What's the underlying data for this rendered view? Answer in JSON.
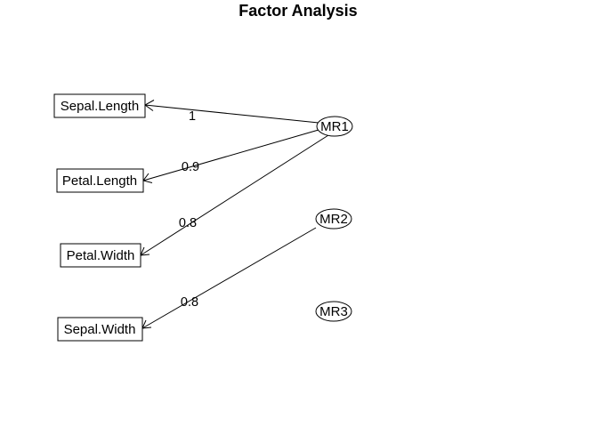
{
  "title": "Factor Analysis",
  "variables": [
    {
      "id": "sepal_length",
      "label": "Sepal.Length"
    },
    {
      "id": "petal_length",
      "label": "Petal.Length"
    },
    {
      "id": "petal_width",
      "label": "Petal.Width"
    },
    {
      "id": "sepal_width",
      "label": "Sepal.Width"
    }
  ],
  "factors": [
    {
      "id": "mr1",
      "label": "MR1"
    },
    {
      "id": "mr2",
      "label": "MR2"
    },
    {
      "id": "mr3",
      "label": "MR3"
    }
  ],
  "loadings": [
    {
      "from": "MR1",
      "to": "Sepal.Length",
      "label": "1"
    },
    {
      "from": "MR1",
      "to": "Petal.Length",
      "label": "0.9"
    },
    {
      "from": "MR1",
      "to": "Petal.Width",
      "label": "0.8"
    },
    {
      "from": "MR2",
      "to": "Sepal.Width",
      "label": "0.8"
    }
  ],
  "colors": {
    "line": "#000000",
    "background": "#ffffff"
  }
}
